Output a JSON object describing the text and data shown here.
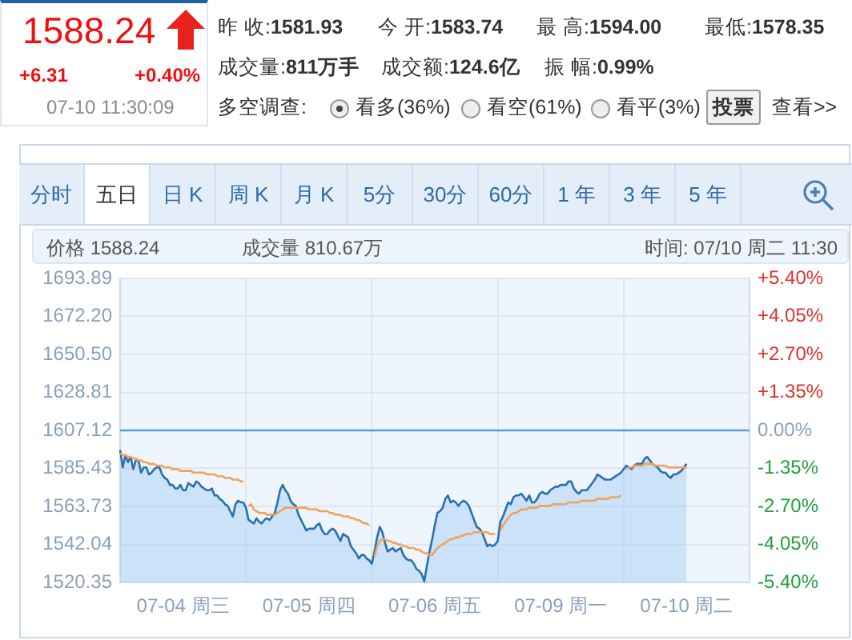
{
  "chart_data": [
    {
      "type": "other",
      "annotations": [
        "1588.24",
        "+6.31",
        "+0.40%",
        "07-10 11:30:09",
        "昨 收:1581.93",
        "今 开:1583.74",
        "最 高:1594.00",
        "最低:1578.35",
        "成交量:811万手",
        "成交额:124.6亿",
        "振 幅:0.99%",
        "多空调查:",
        "看多(36%)",
        "看空(61%)",
        "看平(3%)",
        "投票",
        "查看>>",
        "分时",
        "五日",
        "日 K",
        "周 K",
        "月 K",
        "5分",
        "30分",
        "60分",
        "1 年",
        "3 年",
        "5 年"
      ]
    },
    {
      "type": "line",
      "annotations": [
        "价格 1588.24",
        "成交量 810.67万",
        "时间: 07/10 周二 11:30"
      ],
      "categories": [
        null,
        null,
        null,
        null,
        null,
        null,
        null,
        null,
        null,
        null,
        null,
        null,
        null,
        null,
        null,
        null,
        null,
        null,
        null,
        null,
        null,
        null,
        null,
        null,
        "07-04 周三",
        null,
        null,
        null,
        null,
        null,
        null,
        null,
        null,
        null,
        null,
        null,
        null,
        null,
        null,
        null,
        null,
        null,
        null,
        null,
        null,
        null,
        null,
        null,
        null,
        null,
        null,
        null,
        null,
        null,
        null,
        null,
        null,
        null,
        null,
        null,
        null,
        null,
        null,
        null,
        null,
        null,
        null,
        null,
        null,
        null,
        null,
        null,
        "07-05 周四",
        null,
        null,
        null,
        null,
        null,
        null,
        null,
        null,
        null,
        null,
        null,
        null,
        null,
        null,
        null,
        null,
        null,
        null,
        null,
        null,
        null,
        null,
        null,
        null,
        null,
        null,
        null,
        null,
        null,
        null,
        null,
        null,
        null,
        null,
        null,
        null,
        null,
        null,
        null,
        null,
        null,
        null,
        null,
        null,
        null,
        null,
        null,
        "07-06 周五",
        null,
        null,
        null,
        null,
        null,
        null,
        null,
        null,
        null,
        null,
        null,
        null,
        null,
        null,
        null,
        null,
        null,
        null,
        null,
        null,
        null,
        null,
        null,
        null,
        null,
        null,
        null,
        null,
        null,
        null,
        null,
        null,
        null,
        null,
        null,
        null,
        null,
        null,
        null,
        null,
        null,
        null,
        null,
        null,
        null,
        null,
        null,
        "07-09 周一",
        null,
        null,
        null,
        null,
        null,
        null,
        null,
        null,
        null,
        null,
        null,
        null,
        null,
        null,
        null,
        null,
        null,
        null,
        null,
        null,
        null,
        null,
        null,
        null,
        null,
        null,
        null,
        null,
        null,
        null,
        null,
        null,
        null,
        null,
        null,
        null,
        null,
        null,
        null,
        null,
        null,
        null,
        null,
        null,
        null,
        null,
        null,
        "07-10 周二",
        null,
        null,
        null,
        null,
        null,
        null,
        null,
        null,
        null,
        null,
        null,
        null,
        null,
        null,
        null,
        null,
        null,
        null,
        null,
        null,
        null,
        null,
        null,
        null
      ],
      "ylim": [
        1520.35,
        1693.89
      ],
      "yticks": [
        1520.35,
        1542.04,
        1563.73,
        1585.43,
        1607.12,
        1628.81,
        {
          "value": 1650.5,
          "label": "1650.50"
        },
        {
          "value": 1672.2,
          "label": "1672.20"
        },
        1693.89
      ],
      "y2lim": [
        -5.4,
        5.4
      ],
      "y2ticks": [
        {
          "value": -5.4,
          "label": "-5.40%"
        },
        {
          "value": -4.05,
          "label": "-4.05%"
        },
        {
          "value": -2.7,
          "label": "-2.70%"
        },
        {
          "value": -1.35,
          "label": "-1.35%"
        },
        {
          "value": 0,
          "label": "0.00%"
        },
        {
          "value": 1.35,
          "label": "+1.35%"
        },
        {
          "value": 2.7,
          "label": "+2.70%"
        },
        {
          "value": 4.05,
          "label": "+4.05%"
        },
        {
          "value": 5.4,
          "label": "+5.40%"
        }
      ],
      "grid": true,
      "marker": "none",
      "line_style": "solid",
      "ref_lines": [
        {
          "axis": "y",
          "value": 1607.12,
          "color": "#5b9bd5"
        }
      ],
      "series": [
        {
          "type": "area",
          "color": "#2a6fb0",
          "values": [
            1596,
            1586,
            1593,
            1589,
            1592,
            1585,
            1590,
            1590,
            1583,
            1586,
            1586,
            1582,
            1583,
            1585,
            1586,
            1586,
            1582,
            1580,
            1579,
            1576,
            1576,
            1574,
            1574,
            1576,
            1573,
            1573,
            1577,
            1576,
            1575,
            1578,
            1577,
            1575,
            1574,
            1573,
            1573,
            1574,
            1570,
            1570,
            1568,
            1567,
            1565,
            1564,
            1561,
            1558,
            1565,
            1567,
            1566,
            1566,
            1563,
            1556,
            1555,
            1554,
            1557,
            1555,
            1554,
            1556,
            1557,
            1556,
            1558,
            1560,
            1566,
            1573,
            1576,
            1573,
            1571,
            1567,
            1565,
            1564,
            1559,
            1556,
            1553,
            1550,
            1551,
            1551,
            1551,
            1553,
            1554,
            1550,
            1548,
            1548,
            1550,
            1551,
            1550,
            1547,
            1544,
            1548,
            1547,
            1546,
            1541,
            1539,
            1537,
            1534,
            1536,
            1536,
            1534,
            1533,
            1531,
            1538,
            1546,
            1552,
            1549,
            1543,
            1538,
            1539,
            1540,
            1538,
            1539,
            1540,
            1536,
            1534,
            1533,
            1533,
            1531,
            1528,
            1527,
            1525,
            1521,
            1530,
            1538,
            1545,
            1553,
            1560,
            1561,
            1563,
            1568,
            1570,
            1566,
            1567,
            1566,
            1564,
            1566,
            1567,
            1566,
            1564,
            1560,
            1556,
            1552,
            1551,
            1549,
            1545,
            1541,
            1542,
            1541,
            1542,
            1544,
            1555,
            1558,
            1562,
            1566,
            1565,
            1569,
            1570,
            1570,
            1571,
            1569,
            1567,
            1570,
            1566,
            1566,
            1568,
            1571,
            1572,
            1571,
            1571,
            1573,
            1574,
            1575,
            1575,
            1576,
            1576,
            1576,
            1578,
            1578,
            1574,
            1572,
            1571,
            1573,
            1573,
            1573,
            1575,
            1577,
            1579,
            1582,
            1581,
            1580,
            1579,
            1579,
            1579,
            1580,
            1581,
            1582,
            1583,
            1585,
            1587,
            1586,
            1585,
            1587,
            1588,
            1588,
            1588,
            1591,
            1592,
            1590,
            1588,
            1587,
            1586,
            1584,
            1583,
            1583,
            1581,
            1580,
            1582,
            1582,
            1583,
            1584,
            1586,
            1588,
            null,
            null,
            null,
            null,
            null,
            null,
            null,
            null,
            null,
            null,
            null,
            null,
            null,
            null,
            null,
            null,
            null,
            null,
            null,
            null,
            null,
            null,
            null,
            null
          ]
        },
        {
          "type": "line",
          "color": "#f0a35a",
          "values": [
            1594,
            1593,
            1593,
            1592,
            1592,
            1591,
            1591,
            1590,
            1590,
            1589,
            1589,
            1588,
            1588,
            1588,
            1587,
            1587,
            1587,
            1586,
            1586,
            1586,
            1585,
            1585,
            1585,
            1584,
            1584,
            1584,
            1584,
            1584,
            1583,
            1583,
            1583,
            1583,
            1583,
            1582,
            1582,
            1582,
            1582,
            1581,
            1581,
            1581,
            1580,
            1580,
            1580,
            1579,
            1579,
            1579,
            1578,
            1578,
            null,
            1564,
            1565,
            1562,
            1561,
            1560,
            1560,
            1560,
            1559,
            1559,
            1559,
            1559,
            1560,
            1561,
            1562,
            1563,
            1563,
            1563,
            1563,
            1563,
            1563,
            1563,
            1563,
            1563,
            1562,
            1562,
            1562,
            1562,
            1561,
            1561,
            1561,
            1561,
            1560,
            1560,
            1559,
            1559,
            1559,
            1558,
            1558,
            1558,
            1557,
            1557,
            1556,
            1556,
            1555,
            1554,
            1554,
            1553,
            null,
            1535,
            1541,
            1544,
            1545,
            1545,
            1544,
            1544,
            1543,
            1543,
            1542,
            1542,
            1541,
            1541,
            1540,
            1540,
            1540,
            1539,
            1539,
            1538,
            1537,
            1537,
            1536,
            1536,
            1538,
            1540,
            1541,
            1542,
            1543,
            1544,
            1545,
            1545,
            1546,
            1546,
            1547,
            1547,
            1548,
            1548,
            1548,
            1549,
            1549,
            1549,
            1549,
            1549,
            1549,
            1548,
            1548,
            1548,
            null,
            1550,
            1553,
            1555,
            1557,
            1559,
            1560,
            1560,
            1561,
            1562,
            1562,
            1562,
            1563,
            1563,
            1563,
            1563,
            1564,
            1564,
            1564,
            1564,
            1564,
            1565,
            1565,
            1565,
            1565,
            1565,
            1565,
            1566,
            1566,
            1566,
            1566,
            1566,
            1567,
            1567,
            1567,
            1567,
            1567,
            1567,
            1568,
            1568,
            1568,
            1568,
            1568,
            1569,
            1569,
            1569,
            1569,
            1570,
            null,
            1585,
            1586,
            1586,
            1587,
            1587,
            1587,
            1587,
            1588,
            1588,
            1588,
            1588,
            1587,
            1587,
            1587,
            1587,
            1587,
            1586,
            1586,
            1586,
            1586,
            1586,
            1586,
            1586,
            1586,
            null,
            null,
            null,
            null,
            null,
            null,
            null,
            null,
            null,
            null,
            null,
            null,
            null,
            null,
            null,
            null,
            null,
            null,
            null,
            null,
            null,
            null,
            null,
            null
          ]
        }
      ]
    }
  ]
}
